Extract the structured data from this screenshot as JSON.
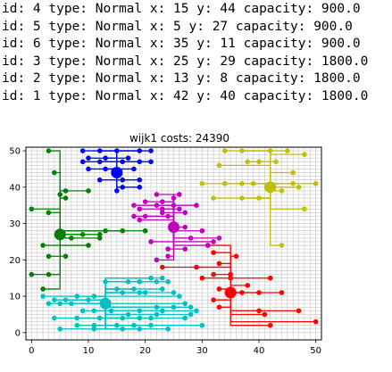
{
  "info_lines": [
    "id: 4 type: Normal x: 15 y: 44 capacity: 900.0",
    "id: 5 type: Normal x: 5 y: 27 capacity: 900.0",
    "id: 6 type: Normal x: 35 y: 11 capacity: 900.0",
    "id: 3 type: Normal x: 25 y: 29 capacity: 1800.0",
    "id: 2 type: Normal x: 13 y: 8 capacity: 1800.0",
    "id: 1 type: Normal x: 42 y: 40 capacity: 1800.0"
  ],
  "chart_data": {
    "type": "scatter",
    "title": "wijk1 costs: 24390",
    "xlim": [
      -1,
      51
    ],
    "ylim": [
      -2,
      51
    ],
    "xticks": [
      0,
      10,
      20,
      30,
      40,
      50
    ],
    "yticks": [
      0,
      10,
      20,
      30,
      40,
      50
    ],
    "grid": "on (unit spacing)",
    "batteries": [
      {
        "id": 4,
        "x": 15,
        "y": 44,
        "color": "#0000ff"
      },
      {
        "id": 5,
        "x": 5,
        "y": 27,
        "color": "#008000"
      },
      {
        "id": 6,
        "x": 35,
        "y": 11,
        "color": "#ff0000"
      },
      {
        "id": 3,
        "x": 25,
        "y": 29,
        "color": "#bf00bf"
      },
      {
        "id": 2,
        "x": 13,
        "y": 8,
        "color": "#00bfbf"
      },
      {
        "id": 1,
        "x": 42,
        "y": 40,
        "color": "#bfbf00"
      }
    ],
    "houses": [
      {
        "battery": 4,
        "color": "#0000ff",
        "points": [
          [
            9,
            50
          ],
          [
            12,
            50
          ],
          [
            15,
            50
          ],
          [
            19,
            50
          ],
          [
            21,
            50
          ],
          [
            10,
            48
          ],
          [
            13,
            48
          ],
          [
            17,
            48
          ],
          [
            9,
            47
          ],
          [
            12,
            47
          ],
          [
            16,
            47
          ],
          [
            19,
            47
          ],
          [
            21,
            47
          ],
          [
            10,
            45
          ],
          [
            13,
            45
          ],
          [
            18,
            45
          ],
          [
            12,
            42
          ],
          [
            16,
            42
          ],
          [
            19,
            42
          ],
          [
            16,
            40
          ],
          [
            19,
            40
          ],
          [
            15,
            39
          ]
        ]
      },
      {
        "battery": 5,
        "color": "#008000",
        "points": [
          [
            3,
            50
          ],
          [
            4,
            44
          ],
          [
            6,
            39
          ],
          [
            10,
            39
          ],
          [
            5,
            38
          ],
          [
            6,
            37
          ],
          [
            0,
            34
          ],
          [
            3,
            33
          ],
          [
            13,
            28
          ],
          [
            16,
            28
          ],
          [
            20,
            28
          ],
          [
            9,
            27
          ],
          [
            12,
            27
          ],
          [
            7,
            26
          ],
          [
            12,
            26
          ],
          [
            2,
            24
          ],
          [
            10,
            24
          ],
          [
            3,
            21
          ],
          [
            6,
            21
          ],
          [
            0,
            16
          ],
          [
            3,
            16
          ],
          [
            2,
            12
          ]
        ]
      },
      {
        "battery": 6,
        "color": "#ff0000",
        "points": [
          [
            31,
            24
          ],
          [
            32,
            22
          ],
          [
            36,
            21
          ],
          [
            33,
            19
          ],
          [
            23,
            18
          ],
          [
            29,
            18
          ],
          [
            32,
            16
          ],
          [
            35,
            16
          ],
          [
            30,
            15
          ],
          [
            35,
            15
          ],
          [
            42,
            15
          ],
          [
            38,
            13
          ],
          [
            33,
            12
          ],
          [
            37,
            11
          ],
          [
            40,
            11
          ],
          [
            44,
            11
          ],
          [
            32,
            9
          ],
          [
            33,
            7
          ],
          [
            40,
            6
          ],
          [
            47,
            6
          ],
          [
            41,
            5
          ],
          [
            50,
            3
          ],
          [
            42,
            2
          ]
        ]
      },
      {
        "battery": 3,
        "color": "#bf00bf",
        "points": [
          [
            22,
            38
          ],
          [
            26,
            38
          ],
          [
            25,
            37
          ],
          [
            20,
            36
          ],
          [
            23,
            36
          ],
          [
            18,
            35
          ],
          [
            22,
            35
          ],
          [
            25,
            35
          ],
          [
            29,
            35
          ],
          [
            19,
            34
          ],
          [
            23,
            34
          ],
          [
            26,
            34
          ],
          [
            23,
            33
          ],
          [
            27,
            33
          ],
          [
            18,
            32
          ],
          [
            20,
            32
          ],
          [
            24,
            32
          ],
          [
            19,
            31
          ],
          [
            27,
            29
          ],
          [
            30,
            28
          ],
          [
            28,
            26
          ],
          [
            33,
            26
          ],
          [
            21,
            25
          ],
          [
            32,
            25
          ],
          [
            31,
            24
          ],
          [
            24,
            23
          ],
          [
            27,
            23
          ],
          [
            24,
            21
          ],
          [
            22,
            20
          ]
        ]
      },
      {
        "battery": 1,
        "color": "#bfbf00",
        "points": [
          [
            34,
            50
          ],
          [
            37,
            50
          ],
          [
            42,
            50
          ],
          [
            45,
            50
          ],
          [
            48,
            49
          ],
          [
            38,
            47
          ],
          [
            40,
            47
          ],
          [
            43,
            47
          ],
          [
            33,
            46
          ],
          [
            46,
            44
          ],
          [
            30,
            41
          ],
          [
            34,
            41
          ],
          [
            37,
            41
          ],
          [
            39,
            41
          ],
          [
            50,
            41
          ],
          [
            46,
            41
          ],
          [
            47,
            40
          ],
          [
            44,
            39
          ],
          [
            32,
            37
          ],
          [
            37,
            37
          ],
          [
            40,
            37
          ],
          [
            48,
            34
          ],
          [
            44,
            24
          ]
        ]
      },
      {
        "battery": 2,
        "color": "#00bfbf",
        "points": [
          [
            21,
            15
          ],
          [
            23,
            15
          ],
          [
            13,
            14
          ],
          [
            17,
            14
          ],
          [
            19,
            14
          ],
          [
            22,
            14
          ],
          [
            24,
            14
          ],
          [
            15,
            12
          ],
          [
            18,
            12
          ],
          [
            23,
            12
          ],
          [
            16,
            11
          ],
          [
            19,
            11
          ],
          [
            20,
            11
          ],
          [
            25,
            11
          ],
          [
            2,
            10
          ],
          [
            8,
            10
          ],
          [
            11,
            10
          ],
          [
            26,
            10
          ],
          [
            4,
            9
          ],
          [
            6,
            9
          ],
          [
            10,
            9
          ],
          [
            3,
            8
          ],
          [
            5,
            8
          ],
          [
            7,
            8
          ],
          [
            27,
            8
          ],
          [
            22,
            7
          ],
          [
            25,
            7
          ],
          [
            28,
            7
          ],
          [
            9,
            6
          ],
          [
            11,
            6
          ],
          [
            14,
            6
          ],
          [
            19,
            6
          ],
          [
            23,
            6
          ],
          [
            29,
            6
          ],
          [
            17,
            5
          ],
          [
            22,
            5
          ],
          [
            28,
            5
          ],
          [
            4,
            4
          ],
          [
            8,
            4
          ],
          [
            12,
            4
          ],
          [
            16,
            4
          ],
          [
            19,
            4
          ],
          [
            21,
            4
          ],
          [
            27,
            4
          ],
          [
            8,
            2
          ],
          [
            11,
            2
          ],
          [
            15,
            2
          ],
          [
            18,
            2
          ],
          [
            21,
            2
          ],
          [
            30,
            2
          ],
          [
            5,
            1
          ],
          [
            11,
            1
          ],
          [
            16,
            1
          ],
          [
            19,
            1
          ],
          [
            24,
            1
          ]
        ]
      }
    ]
  }
}
